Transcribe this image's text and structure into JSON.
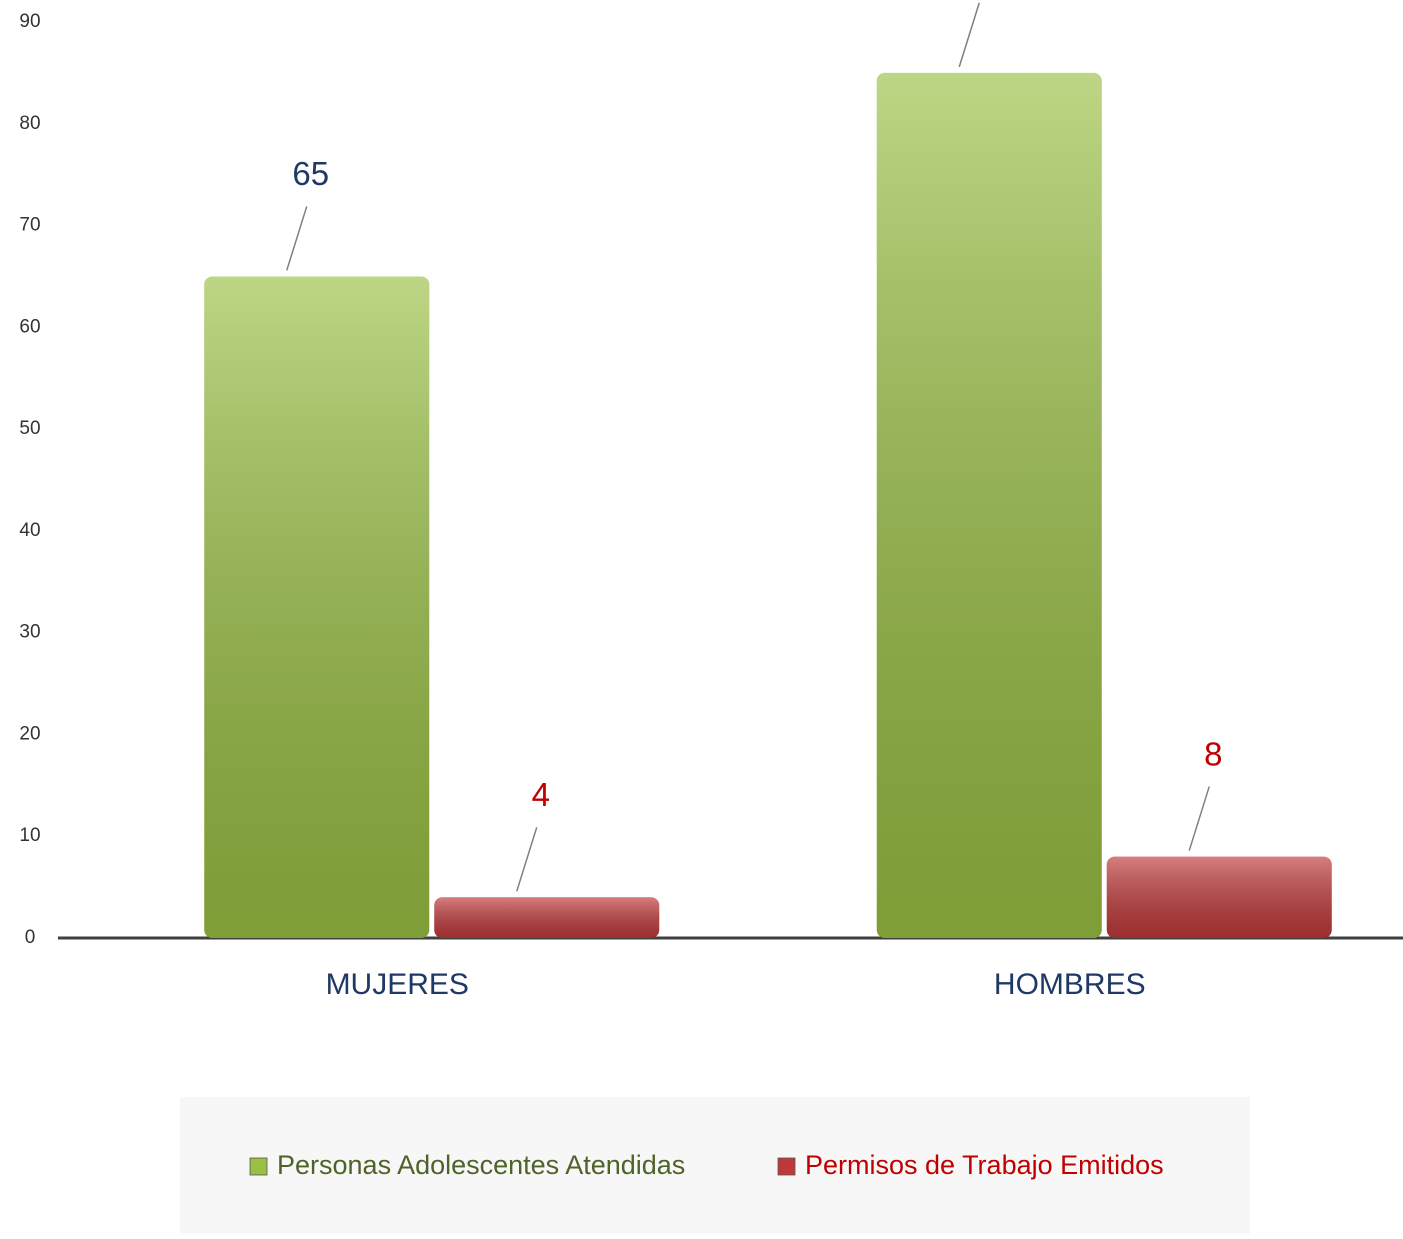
{
  "chart_data": {
    "type": "bar",
    "categories": [
      "MUJERES",
      "HOMBRES"
    ],
    "series": [
      {
        "name": "Personas Adolescentes Atendidas",
        "color": "#9ac043",
        "values": [
          65,
          85
        ]
      },
      {
        "name": "Permisos de Trabajo Emitidos",
        "color": "#c0393a",
        "values": [
          4,
          8
        ]
      }
    ],
    "ylim": [
      0,
      90
    ],
    "yticks": [
      0,
      10,
      20,
      30,
      40,
      50,
      60,
      70,
      80,
      90
    ],
    "grid": false,
    "legend": "bottom"
  }
}
